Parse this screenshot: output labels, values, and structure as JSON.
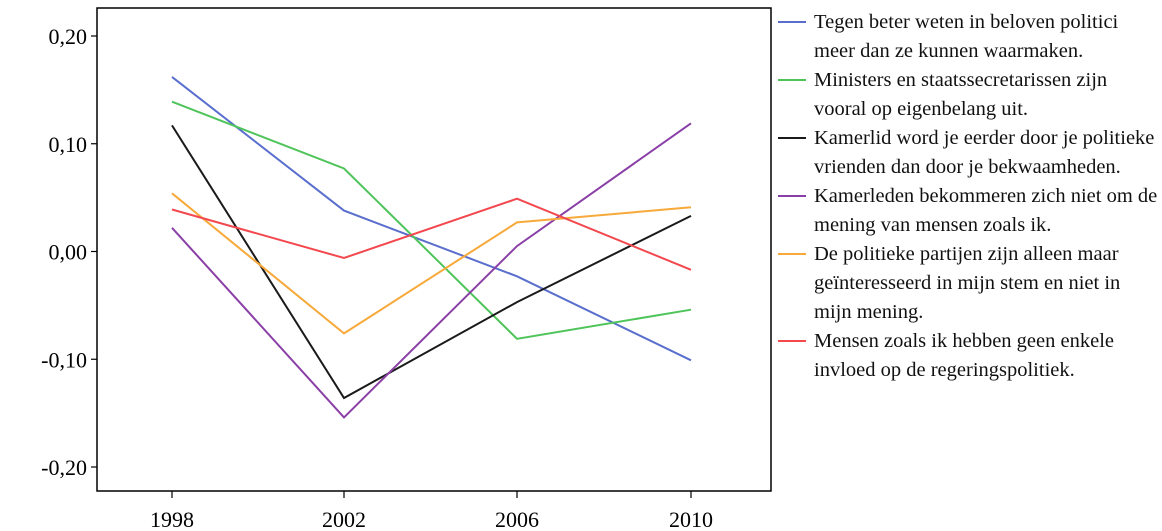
{
  "chart_data": {
    "type": "line",
    "title": "",
    "xlabel": "",
    "ylabel": "",
    "categories": [
      "1998",
      "2002",
      "2006",
      "2010"
    ],
    "ylim": [
      -0.22,
      0.22
    ],
    "yticks": [
      0.2,
      0.1,
      0.0,
      -0.1,
      -0.2
    ],
    "ytick_labels": [
      "0,20",
      "0,10",
      "0,00",
      "-0,10",
      "-0,20"
    ],
    "legend_position": "right",
    "grid": false,
    "series": [
      {
        "name": "Tegen beter weten in beloven politici meer dan ze kunnen waarmaken.",
        "color": "#5a6fcd",
        "values": [
          0.162,
          0.038,
          -0.023,
          -0.101
        ]
      },
      {
        "name": "Ministers en staatssecretarissen zijn vooral op eigenbelang uit.",
        "color": "#4fc45a",
        "values": [
          0.139,
          0.077,
          -0.081,
          -0.054
        ]
      },
      {
        "name": "Kamerlid word je eerder door je politieke vrienden dan door je bekwaamheden.",
        "color": "#1a1a1a",
        "values": [
          0.117,
          -0.136,
          -0.047,
          0.033
        ]
      },
      {
        "name": "Kamerleden bekommeren zich niet om de mening van mensen zoals ik.",
        "color": "#8a3fa6",
        "values": [
          0.022,
          -0.154,
          0.005,
          0.119
        ]
      },
      {
        "name": "De politieke partijen zijn alleen maar geïnteresseerd in mijn stem en niet in mijn mening.",
        "color": "#f7a93a",
        "values": [
          0.054,
          -0.076,
          0.027,
          0.041
        ]
      },
      {
        "name": "Mensen zoals ik hebben geen enkele invloed op de regeringspolitiek.",
        "color": "#f2484e",
        "values": [
          0.039,
          -0.006,
          0.049,
          -0.017
        ]
      }
    ]
  }
}
